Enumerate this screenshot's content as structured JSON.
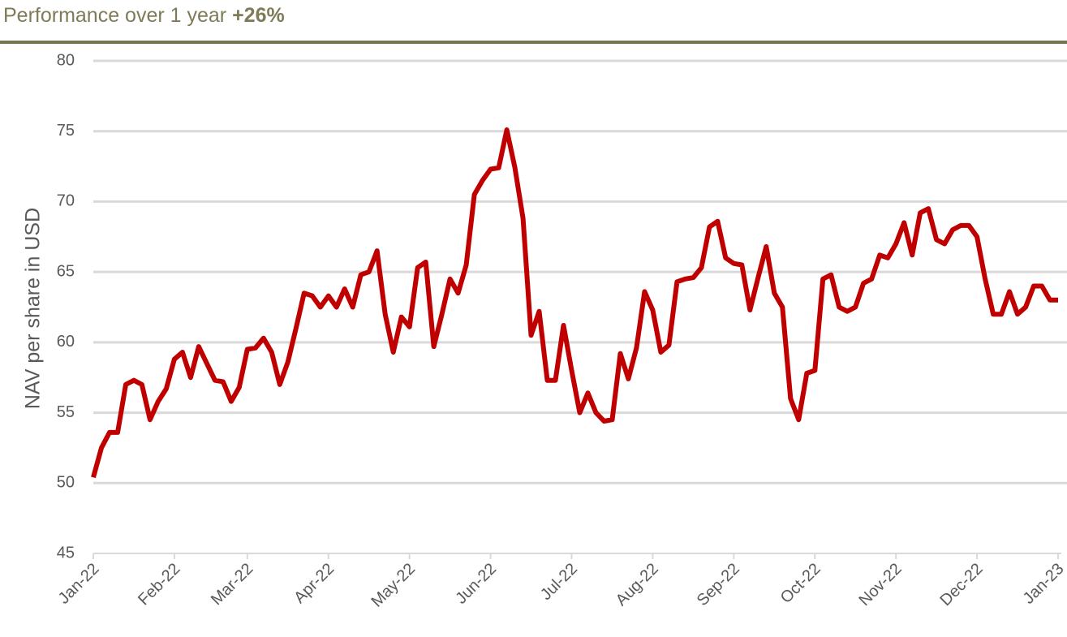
{
  "chart_data": {
    "type": "line",
    "title": "Performance over 1 year",
    "title_highlight": "+26%",
    "y_label": "NAV per share in USD",
    "categories": [
      "Jan-22",
      null,
      null,
      null,
      null,
      null,
      null,
      null,
      null,
      null,
      "Feb-22",
      null,
      null,
      null,
      null,
      null,
      null,
      null,
      null,
      "Mar-22",
      null,
      null,
      null,
      null,
      null,
      null,
      null,
      null,
      null,
      "Apr-22",
      null,
      null,
      null,
      null,
      null,
      null,
      null,
      null,
      null,
      "May-22",
      null,
      null,
      null,
      null,
      null,
      null,
      null,
      null,
      null,
      "Jun-22",
      null,
      null,
      null,
      null,
      null,
      null,
      null,
      null,
      null,
      "Jul-22",
      null,
      null,
      null,
      null,
      null,
      null,
      null,
      null,
      null,
      "Aug-22",
      null,
      null,
      null,
      null,
      null,
      null,
      null,
      null,
      null,
      "Sep-22",
      null,
      null,
      null,
      null,
      null,
      null,
      null,
      null,
      null,
      "Oct-22",
      null,
      null,
      null,
      null,
      null,
      null,
      null,
      null,
      null,
      "Nov-22",
      null,
      null,
      null,
      null,
      null,
      null,
      null,
      null,
      null,
      "Dec-22",
      null,
      null,
      null,
      null,
      null,
      null,
      null,
      null,
      null,
      "Jan-23"
    ],
    "series": [
      {
        "name": "NAV per share",
        "color": "#c00000",
        "values": [
          50.4,
          52.5,
          53.6,
          53.6,
          57.0,
          57.3,
          57.0,
          54.5,
          55.8,
          56.7,
          58.8,
          59.3,
          57.5,
          59.7,
          58.5,
          57.3,
          57.2,
          55.8,
          56.8,
          59.5,
          59.6,
          60.3,
          59.3,
          57.0,
          58.6,
          61.0,
          63.5,
          63.3,
          62.5,
          63.3,
          62.5,
          63.8,
          62.5,
          64.8,
          65.0,
          66.5,
          62.0,
          59.3,
          61.8,
          61.1,
          65.3,
          65.7,
          59.7,
          62.0,
          64.5,
          63.5,
          65.5,
          70.5,
          71.5,
          72.3,
          72.4,
          75.1,
          72.4,
          68.8,
          60.5,
          62.2,
          57.3,
          57.3,
          61.2,
          58.0,
          55.0,
          56.4,
          55.0,
          54.4,
          54.5,
          59.2,
          57.4,
          59.6,
          63.6,
          62.3,
          59.3,
          59.8,
          64.3,
          64.5,
          64.6,
          65.3,
          68.2,
          68.6,
          66.0,
          65.6,
          65.5,
          62.3,
          64.6,
          66.8,
          63.5,
          62.5,
          56.0,
          54.5,
          57.8,
          58.0,
          64.5,
          64.8,
          62.5,
          62.2,
          62.5,
          64.2,
          64.5,
          66.2,
          66.0,
          67.0,
          68.5,
          66.2,
          69.2,
          69.5,
          67.3,
          67.0,
          68.0,
          68.3,
          68.3,
          67.5,
          64.5,
          62.0,
          62.0,
          63.6,
          62.0,
          62.5,
          64.0,
          64.0,
          63.0,
          63.0
        ]
      }
    ],
    "ylim": [
      45,
      80
    ],
    "yticks": [
      45,
      50,
      55,
      60,
      65,
      70,
      75,
      80
    ],
    "grid": true
  }
}
